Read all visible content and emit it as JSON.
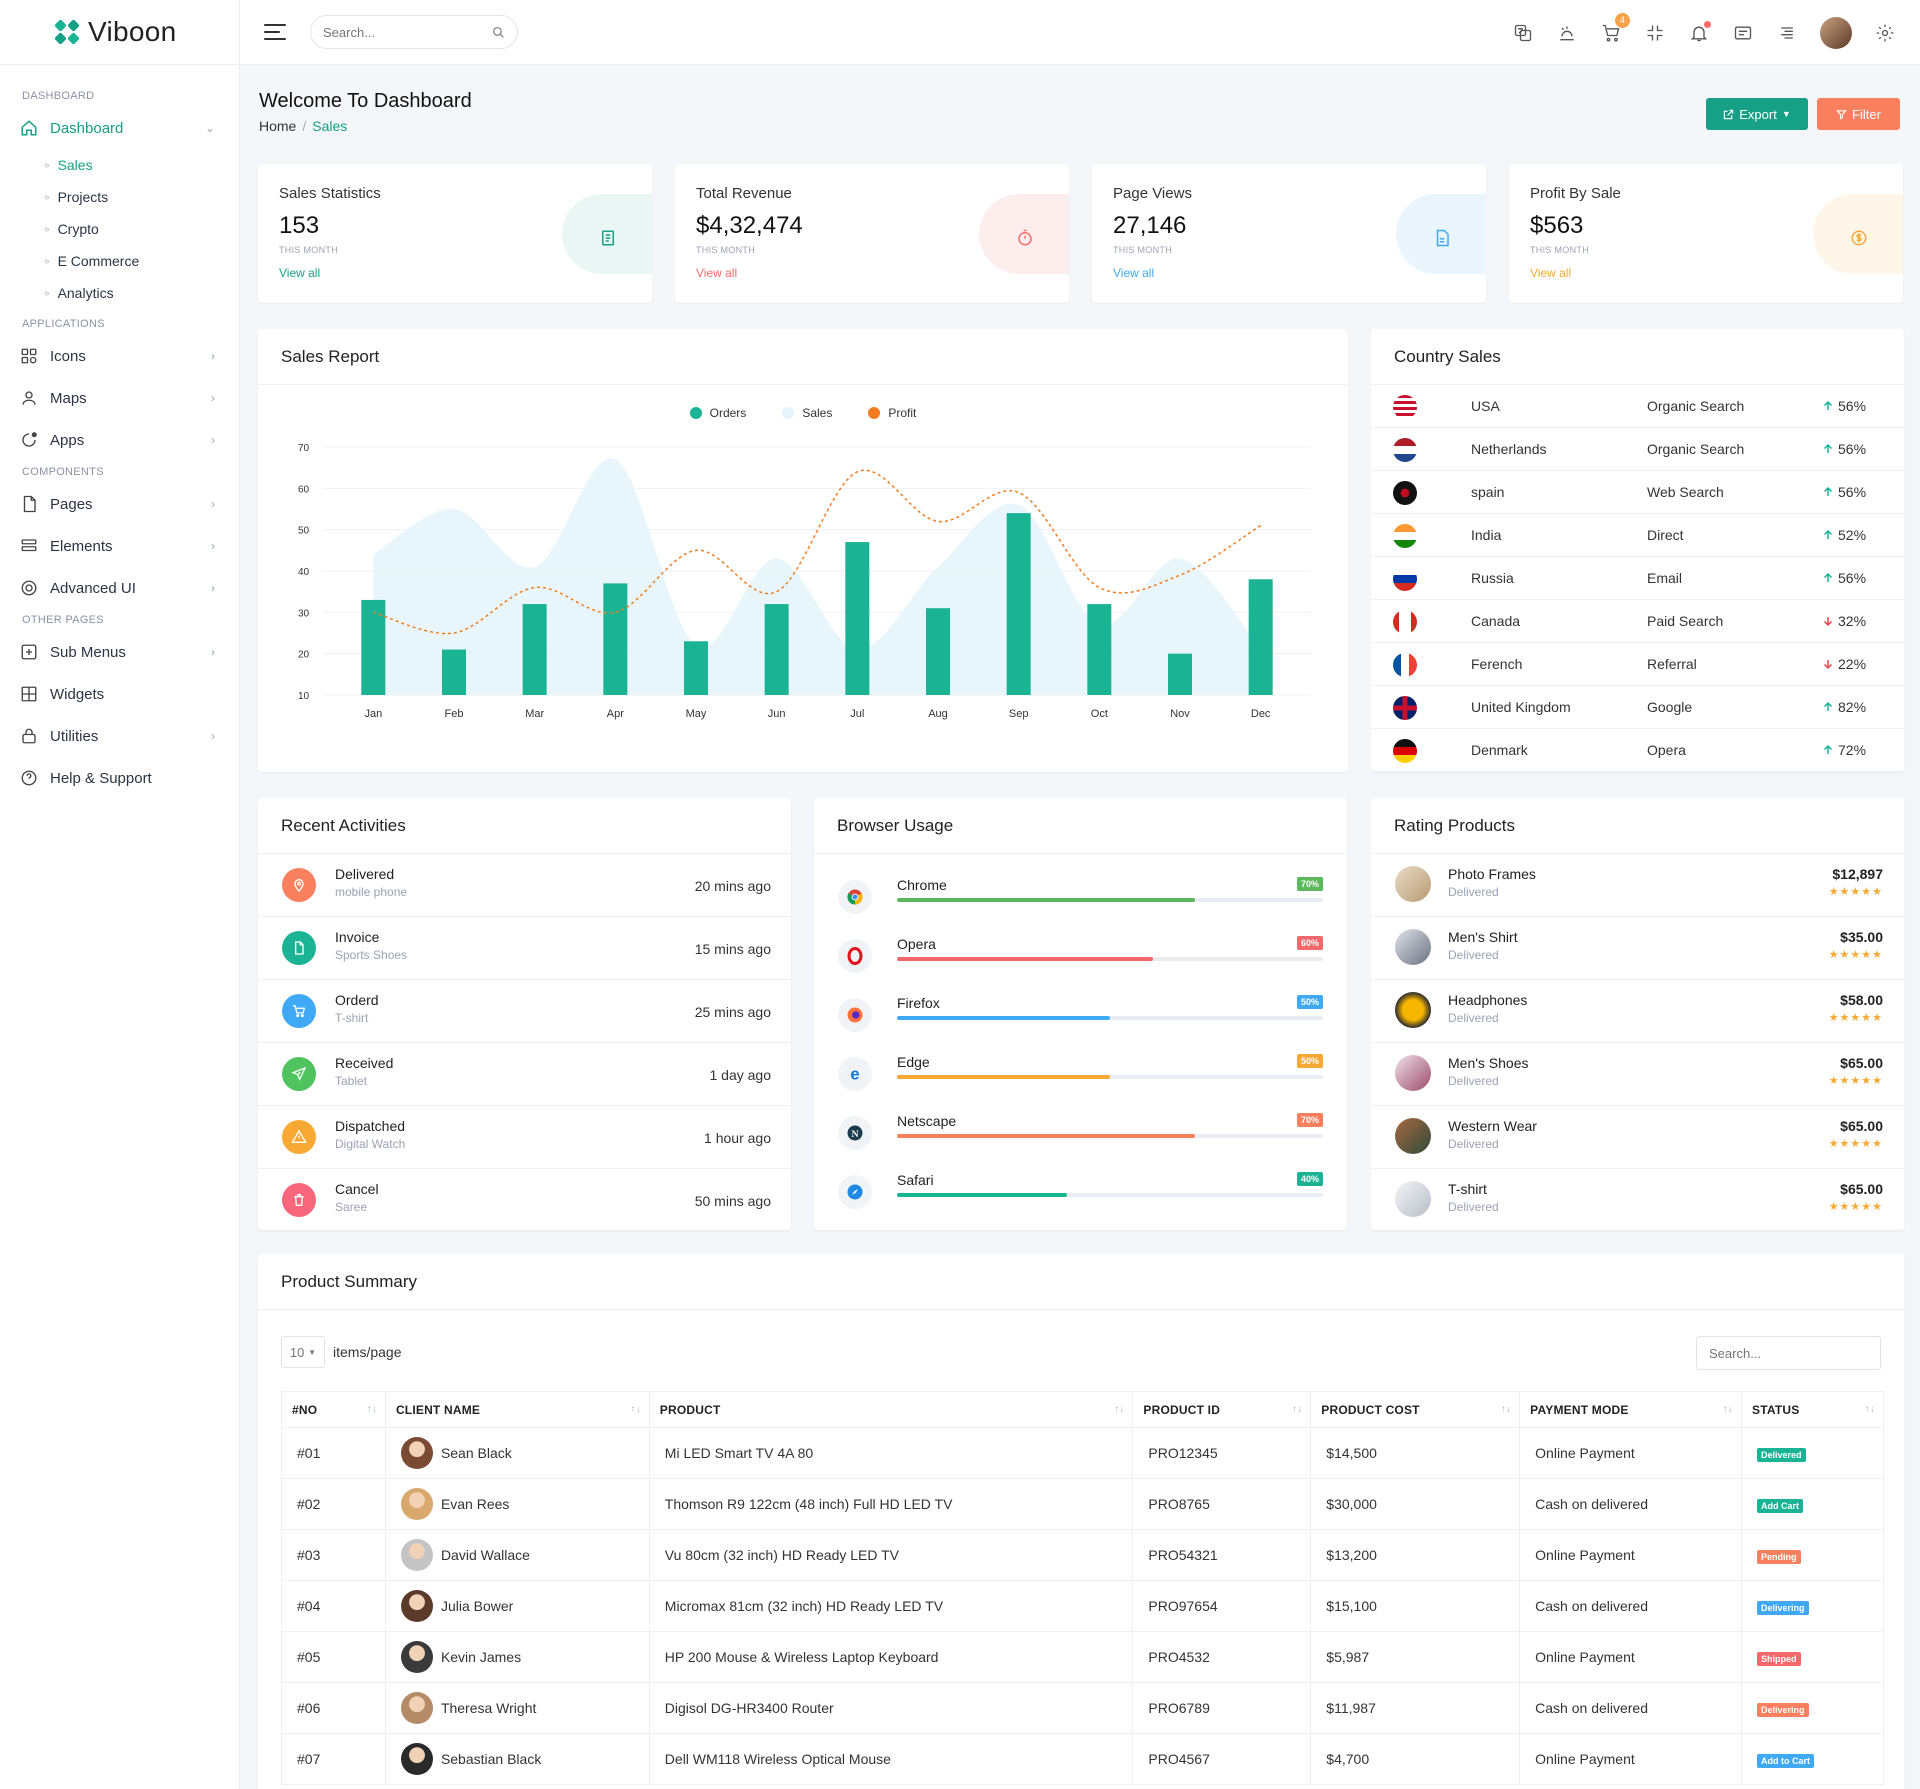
{
  "brand": {
    "name": "Viboon"
  },
  "sidebar": {
    "sections": {
      "dashboard": "DASHBOARD",
      "applications": "APPLICATIONS",
      "components": "COMPONENTS",
      "other": "OTHER PAGES"
    },
    "dashboard_label": "Dashboard",
    "sub": [
      "Sales",
      "Projects",
      "Crypto",
      "E Commerce",
      "Analytics"
    ],
    "apps": [
      "Icons",
      "Maps",
      "Apps"
    ],
    "components": [
      "Pages",
      "Elements",
      "Advanced UI"
    ],
    "other": [
      "Sub Menus",
      "Widgets",
      "Utilities",
      "Help & Support"
    ]
  },
  "topbar": {
    "search_placeholder": "Search...",
    "cart_count": "4"
  },
  "page": {
    "title": "Welcome To Dashboard",
    "crumb_home": "Home",
    "crumb_current": "Sales",
    "export_label": "Export",
    "filter_label": "Filter"
  },
  "stats": [
    {
      "label": "Sales Statistics",
      "value": "153",
      "sub": "THIS MONTH",
      "link": "View all",
      "color": "#16a085",
      "bg": "#eaf6f3"
    },
    {
      "label": "Total Revenue",
      "value": "$4,32,474",
      "sub": "THIS MONTH",
      "link": "View all",
      "color": "#f86c6b",
      "bg": "#fdeeee"
    },
    {
      "label": "Page Views",
      "value": "27,146",
      "sub": "THIS MONTH",
      "link": "View all",
      "color": "#3fa9f5",
      "bg": "#eaf5fd"
    },
    {
      "label": "Profit By Sale",
      "value": "$563",
      "sub": "THIS MONTH",
      "link": "View all",
      "color": "#f7a934",
      "bg": "#fef6e9"
    }
  ],
  "sales_report": {
    "title": "Sales Report"
  },
  "chart_data": {
    "type": "bar",
    "categories": [
      "Jan",
      "Feb",
      "Mar",
      "Apr",
      "May",
      "Jun",
      "Jul",
      "Aug",
      "Sep",
      "Oct",
      "Nov",
      "Dec"
    ],
    "series": [
      {
        "name": "Orders",
        "type": "bar",
        "color": "#1ab394",
        "values": [
          33,
          21,
          32,
          37,
          23,
          32,
          47,
          31,
          54,
          32,
          20,
          38
        ]
      },
      {
        "name": "Sales",
        "type": "area",
        "color": "#e6f5fb",
        "values": [
          44,
          55,
          41,
          67,
          22,
          43,
          21,
          41,
          56,
          27,
          43,
          21
        ]
      },
      {
        "name": "Profit",
        "type": "line",
        "color": "#f47c20",
        "values": [
          30,
          25,
          36,
          30,
          45,
          35,
          64,
          52,
          59,
          36,
          39,
          51
        ]
      }
    ],
    "ylim": [
      10,
      70
    ],
    "yticks": [
      10,
      20,
      30,
      40,
      50,
      60,
      70
    ]
  },
  "country_sales": {
    "title": "Country Sales",
    "rows": [
      {
        "country": "USA",
        "source": "Organic Search",
        "pct": "56%",
        "dir": "up"
      },
      {
        "country": "Netherlands",
        "source": "Organic Search",
        "pct": "56%",
        "dir": "up"
      },
      {
        "country": "spain",
        "source": "Web Search",
        "pct": "56%",
        "dir": "up"
      },
      {
        "country": "India",
        "source": "Direct",
        "pct": "52%",
        "dir": "up"
      },
      {
        "country": "Russia",
        "source": "Email",
        "pct": "56%",
        "dir": "up"
      },
      {
        "country": "Canada",
        "source": "Paid Search",
        "pct": "32%",
        "dir": "down"
      },
      {
        "country": "Ferench",
        "source": "Referral",
        "pct": "22%",
        "dir": "down"
      },
      {
        "country": "United Kingdom",
        "source": "Google",
        "pct": "82%",
        "dir": "up"
      },
      {
        "country": "Denmark",
        "source": "Opera",
        "pct": "72%",
        "dir": "up"
      }
    ]
  },
  "recent": {
    "title": "Recent Activities",
    "rows": [
      {
        "title": "Delivered",
        "sub": "mobile phone",
        "time": "20 mins ago",
        "color": "#f8805f",
        "icon": "map-pin-icon"
      },
      {
        "title": "Invoice",
        "sub": "Sports Shoes",
        "time": "15 mins ago",
        "color": "#1ab394",
        "icon": "file-icon"
      },
      {
        "title": "Orderd",
        "sub": "T-shirt",
        "time": "25 mins ago",
        "color": "#3fa9f5",
        "icon": "cart-icon"
      },
      {
        "title": "Received",
        "sub": "Tablet",
        "time": "1 day ago",
        "color": "#4fc35d",
        "icon": "send-icon"
      },
      {
        "title": "Dispatched",
        "sub": "Digital Watch",
        "time": "1 hour ago",
        "color": "#f7a934",
        "icon": "alert-icon"
      },
      {
        "title": "Cancel",
        "sub": "Saree",
        "time": "50 mins ago",
        "color": "#f8677b",
        "icon": "trash-icon"
      }
    ]
  },
  "browser": {
    "title": "Browser Usage",
    "rows": [
      {
        "name": "Chrome",
        "pct": "70%",
        "value": 70,
        "color": "#5cb85c"
      },
      {
        "name": "Opera",
        "pct": "60%",
        "value": 60,
        "color": "#f4676b"
      },
      {
        "name": "Firefox",
        "pct": "50%",
        "value": 50,
        "color": "#3fa9f5"
      },
      {
        "name": "Edge",
        "pct": "50%",
        "value": 50,
        "color": "#f7a934"
      },
      {
        "name": "Netscape",
        "pct": "70%",
        "value": 70,
        "color": "#f8805f"
      },
      {
        "name": "Safari",
        "pct": "40%",
        "value": 40,
        "color": "#1ab394"
      }
    ]
  },
  "rating": {
    "title": "Rating Products",
    "rows": [
      {
        "name": "Photo Frames",
        "status": "Delivered",
        "price": "$12,897"
      },
      {
        "name": "Men's Shirt",
        "status": "Delivered",
        "price": "$35.00"
      },
      {
        "name": "Headphones",
        "status": "Delivered",
        "price": "$58.00"
      },
      {
        "name": "Men's Shoes",
        "status": "Delivered",
        "price": "$65.00"
      },
      {
        "name": "Western Wear",
        "status": "Delivered",
        "price": "$65.00"
      },
      {
        "name": "T-shirt",
        "status": "Delivered",
        "price": "$65.00"
      }
    ]
  },
  "summary": {
    "title": "Product Summary",
    "per_page": "10",
    "per_page_label": "items/page",
    "search_placeholder": "Search...",
    "columns": [
      "#NO",
      "CLIENT NAME",
      "PRODUCT",
      "PRODUCT ID",
      "PRODUCT COST",
      "PAYMENT MODE",
      "STATUS"
    ],
    "rows": [
      {
        "no": "#01",
        "client": "Sean Black",
        "product": "Mi LED Smart TV 4A 80",
        "pid": "PRO12345",
        "cost": "$14,500",
        "mode": "Online Payment",
        "status": "Delivered",
        "color": "#1ab394"
      },
      {
        "no": "#02",
        "client": "Evan Rees",
        "product": "Thomson R9 122cm (48 inch) Full HD LED TV",
        "pid": "PRO8765",
        "cost": "$30,000",
        "mode": "Cash on delivered",
        "status": "Add Cart",
        "color": "#1ab394"
      },
      {
        "no": "#03",
        "client": "David Wallace",
        "product": "Vu 80cm (32 inch) HD Ready LED TV",
        "pid": "PRO54321",
        "cost": "$13,200",
        "mode": "Online Payment",
        "status": "Pending",
        "color": "#f8805f"
      },
      {
        "no": "#04",
        "client": "Julia Bower",
        "product": "Micromax 81cm (32 inch) HD Ready LED TV",
        "pid": "PRO97654",
        "cost": "$15,100",
        "mode": "Cash on delivered",
        "status": "Delivering",
        "color": "#3fa9f5"
      },
      {
        "no": "#05",
        "client": "Kevin James",
        "product": "HP 200 Mouse & Wireless Laptop Keyboard",
        "pid": "PRO4532",
        "cost": "$5,987",
        "mode": "Online Payment",
        "status": "Shipped",
        "color": "#f4676b"
      },
      {
        "no": "#06",
        "client": "Theresa Wright",
        "product": "Digisol DG-HR3400 Router",
        "pid": "PRO6789",
        "cost": "$11,987",
        "mode": "Cash on delivered",
        "status": "Delivering",
        "color": "#f8805f"
      },
      {
        "no": "#07",
        "client": "Sebastian Black",
        "product": "Dell WM118 Wireless Optical Mouse",
        "pid": "PRO4567",
        "cost": "$4,700",
        "mode": "Online Payment",
        "status": "Add to Cart",
        "color": "#3fa9f5"
      }
    ]
  }
}
